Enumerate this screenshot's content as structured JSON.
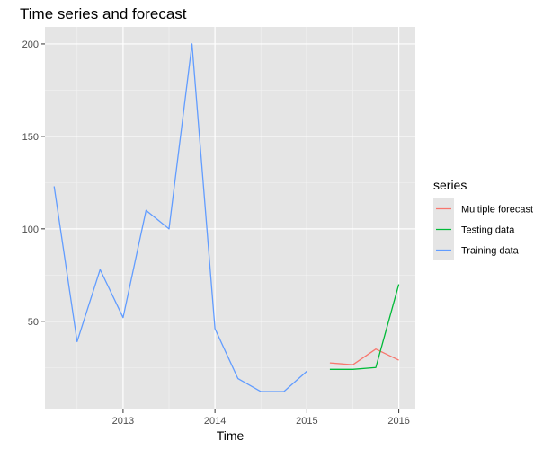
{
  "chart_data": {
    "type": "line",
    "title": "Time series and forecast",
    "xlabel": "Time",
    "ylabel": "",
    "xlim": [
      2012.15,
      2016.18
    ],
    "ylim": [
      2.3,
      209.2
    ],
    "x_ticks": [
      2013,
      2014,
      2015,
      2016
    ],
    "x_tick_labels": [
      "2013",
      "2014",
      "2015",
      "2016"
    ],
    "y_ticks": [
      50,
      100,
      150,
      200
    ],
    "y_tick_labels": [
      "50",
      "100",
      "150",
      "200"
    ],
    "grid": true,
    "legend": {
      "title": "series",
      "placement": "right"
    },
    "colors": {
      "panel_background": "#e5e5e5",
      "grid_major": "#ffffff",
      "grid_minor": "#f2f2f2",
      "axis_text": "#4d4d4d"
    },
    "series": [
      {
        "name": "Multiple forecast",
        "color": "#f8766d",
        "x": [
          2015.25,
          2015.5,
          2015.75,
          2016.0
        ],
        "values": [
          27.5,
          26.5,
          35,
          29
        ]
      },
      {
        "name": "Testing data",
        "color": "#00ba38",
        "x": [
          2015.25,
          2015.5,
          2015.75,
          2016.0
        ],
        "values": [
          24,
          24,
          25,
          70
        ]
      },
      {
        "name": "Training data",
        "color": "#619cff",
        "x": [
          2012.25,
          2012.5,
          2012.75,
          2013.0,
          2013.25,
          2013.5,
          2013.75,
          2014.0,
          2014.25,
          2014.5,
          2014.75,
          2015.0
        ],
        "values": [
          123,
          39,
          78,
          52,
          110,
          100,
          200,
          46,
          19,
          12,
          12,
          23
        ]
      }
    ]
  }
}
